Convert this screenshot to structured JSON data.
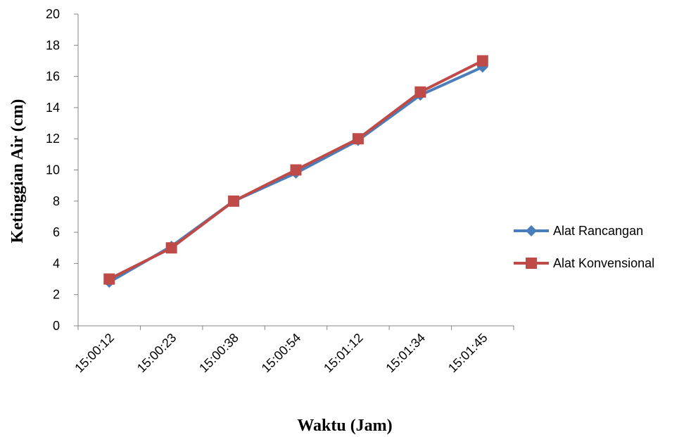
{
  "chart_data": {
    "type": "line",
    "x_label": "Waktu (Jam)",
    "y_label": "Ketinggian Air (cm)",
    "categories": [
      "15:00:12",
      "15:00:23",
      "15:00:38",
      "15:00:54",
      "15:01:12",
      "15:01:34",
      "15:01:45"
    ],
    "series": [
      {
        "name": "Alat Rancangan",
        "color": "#4a7ebb",
        "marker": "diamond",
        "values": [
          2.8,
          5.1,
          8.0,
          9.8,
          11.9,
          14.8,
          16.6
        ]
      },
      {
        "name": "Alat Konvensional",
        "color": "#be4b48",
        "marker": "square",
        "values": [
          3,
          5,
          8,
          10,
          12,
          15,
          17
        ]
      }
    ],
    "ylim": [
      0,
      20
    ],
    "yticks": [
      0,
      2,
      4,
      6,
      8,
      10,
      12,
      14,
      16,
      18,
      20
    ],
    "grid": false,
    "legend": "right"
  }
}
